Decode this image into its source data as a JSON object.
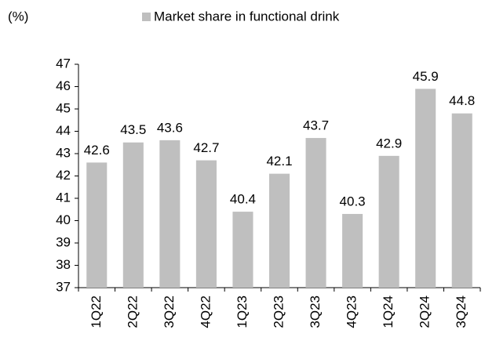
{
  "chart_data": {
    "type": "bar",
    "unit_label": "(%)",
    "categories": [
      "1Q22",
      "2Q22",
      "3Q22",
      "4Q22",
      "1Q23",
      "2Q23",
      "3Q23",
      "4Q23",
      "1Q24",
      "2Q24",
      "3Q24"
    ],
    "series": [
      {
        "name": "Market share in functional drink",
        "color": "#bfbfbf",
        "values": [
          42.6,
          43.5,
          43.6,
          42.7,
          40.4,
          42.1,
          43.7,
          40.3,
          42.9,
          45.9,
          44.8
        ]
      }
    ],
    "ylim": [
      37,
      47
    ],
    "yticks": [
      37,
      38,
      39,
      40,
      41,
      42,
      43,
      44,
      45,
      46,
      47
    ],
    "grid": false,
    "data_labels": true
  }
}
